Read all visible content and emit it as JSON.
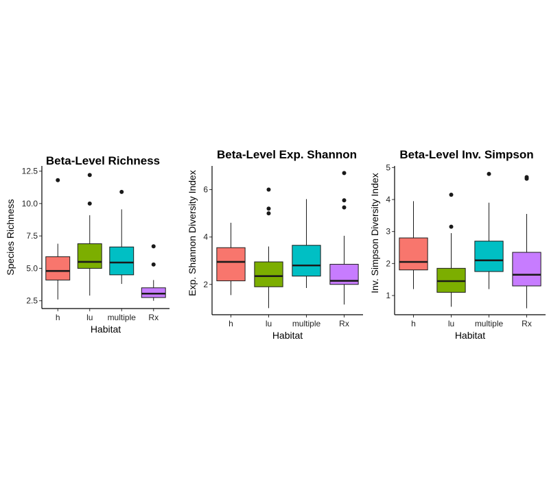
{
  "chart_data": [
    {
      "type": "boxplot",
      "title": "Beta-Level Richness",
      "xlabel": "Habitat",
      "ylabel": "Species Richness",
      "ylim": [
        1.9,
        12.9
      ],
      "yticks": [
        2.5,
        5.0,
        7.5,
        10.0,
        12.5
      ],
      "ytick_labels": [
        "2.5",
        "5.0",
        "7.5",
        "10.0",
        "12.5"
      ],
      "categories": [
        "h",
        "lu",
        "multiple",
        "Rx"
      ],
      "boxes": [
        {
          "category": "h",
          "whisker_low": 2.6,
          "q1": 4.1,
          "median": 4.8,
          "q3": 5.9,
          "whisker_high": 6.9,
          "outliers": [
            11.8
          ],
          "color": "#F8766D"
        },
        {
          "category": "lu",
          "whisker_low": 2.9,
          "q1": 5.0,
          "median": 5.5,
          "q3": 6.9,
          "whisker_high": 9.1,
          "outliers": [
            10.0,
            12.2
          ],
          "color": "#7CAE00"
        },
        {
          "category": "multiple",
          "whisker_low": 3.8,
          "q1": 4.5,
          "median": 5.45,
          "q3": 6.65,
          "whisker_high": 9.55,
          "outliers": [
            10.9
          ],
          "color": "#00BFC4"
        },
        {
          "category": "Rx",
          "whisker_low": 2.5,
          "q1": 2.75,
          "median": 3.05,
          "q3": 3.5,
          "whisker_high": 4.1,
          "outliers": [
            5.3,
            6.7
          ],
          "color": "#C77CFF"
        }
      ]
    },
    {
      "type": "boxplot",
      "title": "Beta-Level Exp. Shannon",
      "xlabel": "Habitat",
      "ylabel": "Exp. Shannon Diversity Index",
      "ylim": [
        0.72,
        7.0
      ],
      "yticks": [
        2,
        4,
        6
      ],
      "ytick_labels": [
        "2",
        "4",
        "6"
      ],
      "categories": [
        "h",
        "lu",
        "multiple",
        "Rx"
      ],
      "boxes": [
        {
          "category": "h",
          "whisker_low": 1.55,
          "q1": 2.15,
          "median": 2.95,
          "q3": 3.55,
          "whisker_high": 4.6,
          "outliers": [],
          "color": "#F8766D"
        },
        {
          "category": "lu",
          "whisker_low": 1.0,
          "q1": 1.9,
          "median": 2.35,
          "q3": 2.95,
          "whisker_high": 3.6,
          "outliers": [
            5.0,
            5.2,
            6.0
          ],
          "color": "#7CAE00"
        },
        {
          "category": "multiple",
          "whisker_low": 1.85,
          "q1": 2.35,
          "median": 2.8,
          "q3": 3.65,
          "whisker_high": 5.6,
          "outliers": [],
          "color": "#00BFC4"
        },
        {
          "category": "Rx",
          "whisker_low": 1.15,
          "q1": 2.0,
          "median": 2.15,
          "q3": 2.85,
          "whisker_high": 4.05,
          "outliers": [
            5.25,
            5.55,
            6.7
          ],
          "color": "#C77CFF"
        }
      ]
    },
    {
      "type": "boxplot",
      "title": "Beta-Level Inv. Simpson",
      "xlabel": "Habitat",
      "ylabel": "Inv. Simpson Diversity Index",
      "ylim": [
        0.4,
        5.05
      ],
      "yticks": [
        1,
        2,
        3,
        4,
        5
      ],
      "ytick_labels": [
        "1",
        "2",
        "3",
        "4",
        "5"
      ],
      "categories": [
        "h",
        "lu",
        "multiple",
        "Rx"
      ],
      "boxes": [
        {
          "category": "h",
          "whisker_low": 1.2,
          "q1": 1.8,
          "median": 2.05,
          "q3": 2.8,
          "whisker_high": 3.95,
          "outliers": [],
          "color": "#F8766D"
        },
        {
          "category": "lu",
          "whisker_low": 0.65,
          "q1": 1.1,
          "median": 1.45,
          "q3": 1.85,
          "whisker_high": 2.95,
          "outliers": [
            3.15,
            4.15
          ],
          "color": "#7CAE00"
        },
        {
          "category": "multiple",
          "whisker_low": 1.2,
          "q1": 1.75,
          "median": 2.1,
          "q3": 2.7,
          "whisker_high": 3.9,
          "outliers": [
            4.8
          ],
          "color": "#00BFC4"
        },
        {
          "category": "Rx",
          "whisker_low": 0.6,
          "q1": 1.3,
          "median": 1.65,
          "q3": 2.35,
          "whisker_high": 3.55,
          "outliers": [
            4.65,
            4.7
          ],
          "color": "#C77CFF"
        }
      ]
    }
  ]
}
